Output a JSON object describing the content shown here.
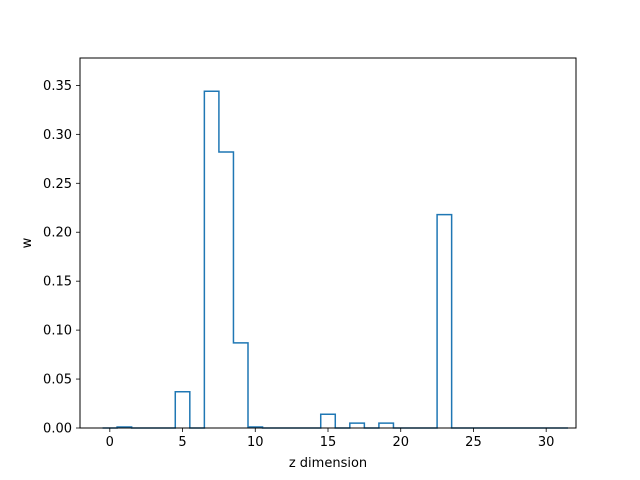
{
  "chart_data": {
    "type": "bar",
    "style": "step-histogram",
    "xlabel": "z dimension",
    "ylabel": "w",
    "xlim": [
      -2.05,
      32.05
    ],
    "ylim": [
      0,
      0.378
    ],
    "x_ticks": [
      0,
      5,
      10,
      15,
      20,
      25,
      30
    ],
    "y_ticks": [
      0.0,
      0.05,
      0.1,
      0.15,
      0.2,
      0.25,
      0.3,
      0.35
    ],
    "categories": [
      0,
      1,
      2,
      3,
      4,
      5,
      6,
      7,
      8,
      9,
      10,
      11,
      12,
      13,
      14,
      15,
      16,
      17,
      18,
      19,
      20,
      21,
      22,
      23,
      24,
      25,
      26,
      27,
      28,
      29,
      30,
      31
    ],
    "values": [
      0.0,
      0.001,
      0.0,
      0.0,
      0.0,
      0.037,
      0.0,
      0.344,
      0.282,
      0.087,
      0.001,
      0.0,
      0.0,
      0.0,
      0.0,
      0.014,
      0.0,
      0.005,
      0.0,
      0.005,
      0.0,
      0.0,
      0.0,
      0.218,
      0.0,
      0.0,
      0.0,
      0.0,
      0.0,
      0.0,
      0.0,
      0.0
    ],
    "grid": false,
    "line_color": "#1f77b4"
  }
}
